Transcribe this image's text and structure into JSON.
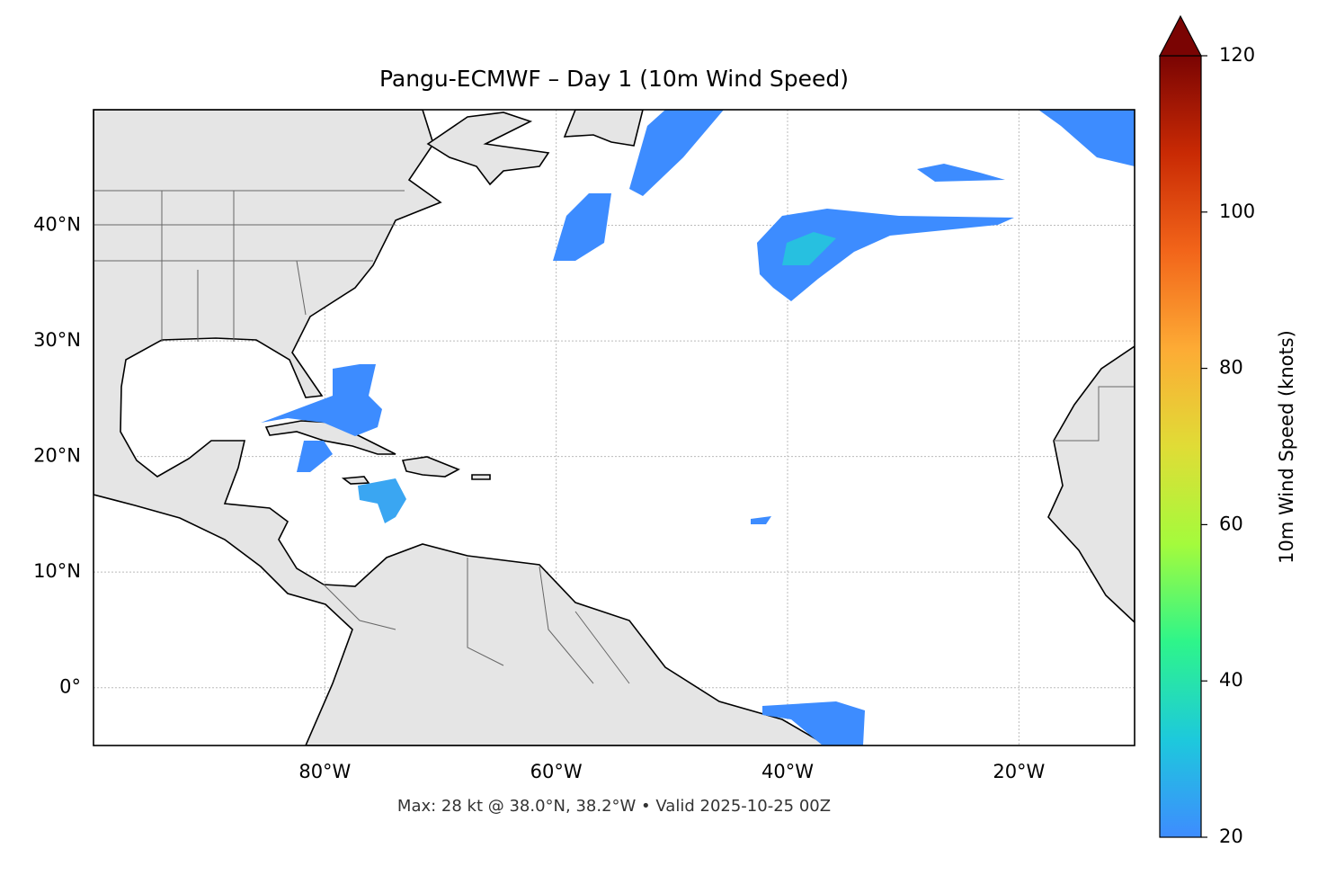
{
  "chart_data": {
    "type": "map",
    "title": "Pangu-ECMWF – Day 1 (10m Wind Speed)",
    "footer": "Max: 28 kt @ 38.0°N, 38.2°W • Valid 2025-10-25 00Z",
    "xlim": [
      -100,
      -10
    ],
    "ylim": [
      -5,
      50
    ],
    "xticks": [
      {
        "value": -80,
        "label": "80°W"
      },
      {
        "value": -60,
        "label": "60°W"
      },
      {
        "value": -40,
        "label": "40°W"
      },
      {
        "value": -20,
        "label": "20°W"
      }
    ],
    "yticks": [
      {
        "value": 0,
        "label": "0°"
      },
      {
        "value": 10,
        "label": "10°N"
      },
      {
        "value": 20,
        "label": "20°N"
      },
      {
        "value": 30,
        "label": "30°N"
      },
      {
        "value": 40,
        "label": "40°N"
      }
    ],
    "grid": true,
    "colorbar": {
      "label": "10m Wind Speed (knots)",
      "lim": [
        20,
        120
      ],
      "ticks": [
        20,
        40,
        60,
        80,
        100,
        120
      ],
      "extend": "max",
      "colors": [
        "#3e8cff",
        "#1dc9dc",
        "#2ef58a",
        "#a4fb3c",
        "#e0dc36",
        "#fdab35",
        "#f2651a",
        "#c92a04",
        "#7a0403"
      ]
    }
  }
}
